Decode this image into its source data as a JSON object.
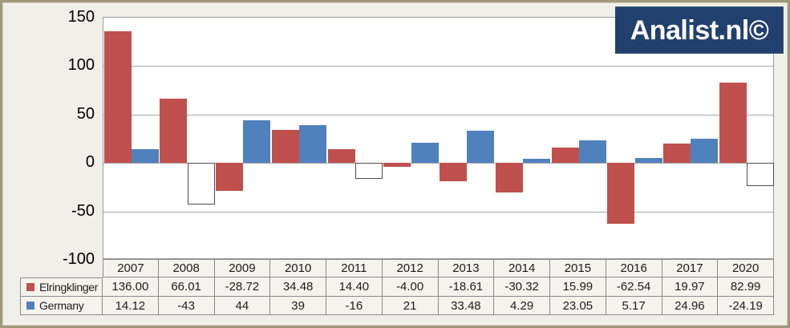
{
  "logo": {
    "text": "Analist.nl©",
    "bg_color": "#21406e",
    "text_color": "#ffffff"
  },
  "chart_data": {
    "type": "bar",
    "title": "",
    "xlabel": "",
    "ylabel": "",
    "categories": [
      "2007",
      "2008",
      "2009",
      "2010",
      "2011",
      "2012",
      "2013",
      "2014",
      "2015",
      "2016",
      "2017",
      "2020"
    ],
    "series": [
      {
        "name": "Elringklinger",
        "color": "#c0504d",
        "values": [
          136.0,
          66.01,
          -28.72,
          34.48,
          14.4,
          -4.0,
          -18.61,
          -30.32,
          15.99,
          -62.54,
          19.97,
          82.99
        ],
        "labels": [
          "136.00",
          "66.01",
          "-28.72",
          "34.48",
          "14.40",
          "-4.00",
          "-18.61",
          "-30.32",
          "15.99",
          "-62.54",
          "19.97",
          "82.99"
        ]
      },
      {
        "name": "Germany",
        "color": "#4f81bd",
        "negative_fill": "#ffffff",
        "negative_border": "#4d4d4d",
        "values": [
          14.12,
          -43,
          44,
          39,
          -16,
          21,
          33.48,
          4.29,
          23.05,
          5.17,
          24.96,
          -24.19
        ],
        "labels": [
          "14.12",
          "-43",
          "44",
          "39",
          "-16",
          "21",
          "33.48",
          "4.29",
          "23.05",
          "5.17",
          "24.96",
          "-24.19"
        ]
      }
    ],
    "ylim": [
      -100,
      150
    ],
    "yticks": [
      150,
      100,
      50,
      0,
      -50,
      -100
    ],
    "grid": true,
    "legend_position": "data-table-left",
    "data_table": true
  }
}
